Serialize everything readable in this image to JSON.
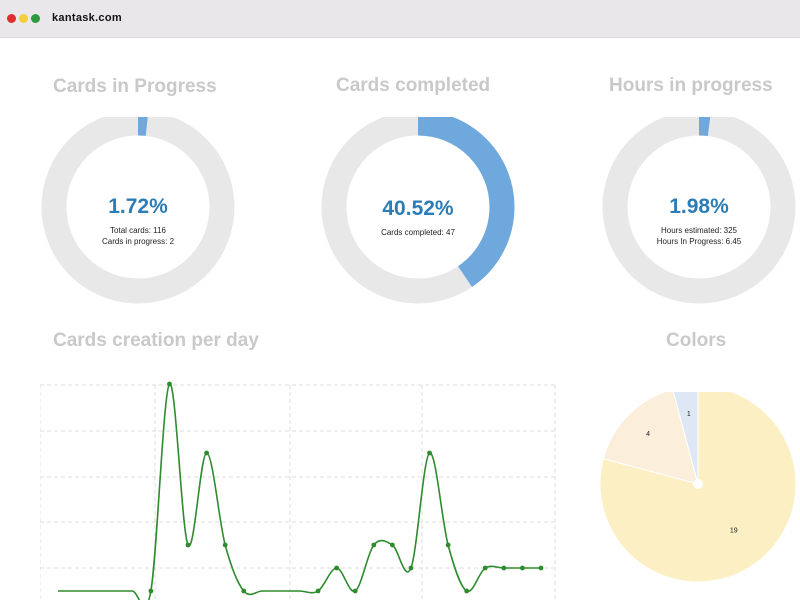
{
  "window": {
    "title": "kantask.com"
  },
  "colors": {
    "accent": "#6fa8dc",
    "track": "#e8e8e8",
    "value_text": "#2c7cb6",
    "title_text": "#c9c9c9",
    "line": "#2e8b2e",
    "dot_red": "#e02d2d",
    "dot_yellow": "#f3cf3a",
    "dot_green": "#2a9a3a"
  },
  "cards_in_progress": {
    "title": "Cards in Progress",
    "percent": 1.72,
    "value_label": "1.72%",
    "line1": "Total cards: 116",
    "line2": "Cards in progress: 2"
  },
  "cards_completed": {
    "title": "Cards completed",
    "percent": 40.52,
    "value_label": "40.52%",
    "line1": "Cards completed: 47"
  },
  "hours_in_progress": {
    "title": "Hours in progress",
    "percent": 1.98,
    "value_label": "1.98%",
    "line1": "Hours estimated: 325",
    "line2": "Hours In Progress: 6.45"
  },
  "cards_creation": {
    "title": "Cards creation per day"
  },
  "colors_panel": {
    "title": "Colors"
  },
  "chart_data": [
    {
      "type": "line",
      "title": "Cards creation per day",
      "x": [
        0,
        1,
        2,
        3,
        4,
        5,
        6,
        7,
        8,
        9,
        10,
        11,
        12,
        13,
        14,
        15,
        16,
        17,
        18,
        19,
        20,
        21,
        22,
        23,
        24,
        25,
        26
      ],
      "y": [
        0,
        0,
        0,
        0,
        0,
        0,
        9,
        2,
        6,
        2,
        0,
        0,
        0,
        0,
        0,
        1,
        0,
        2,
        2,
        1,
        6,
        2,
        0,
        1,
        1,
        1,
        1
      ],
      "ylim": [
        0,
        9
      ],
      "grid": true
    },
    {
      "type": "pie",
      "title": "Colors",
      "values": [
        19,
        4,
        1
      ],
      "slice_colors": [
        "#fdefc4",
        "#fbefdc",
        "#dde8f4"
      ],
      "labels": [
        "19",
        "4",
        "1"
      ]
    }
  ]
}
